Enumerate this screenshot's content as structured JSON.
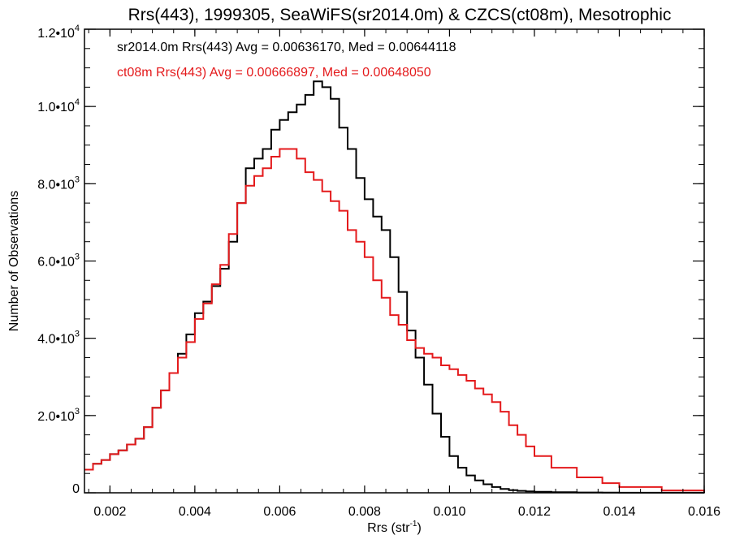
{
  "chart_data": {
    "type": "line",
    "step": true,
    "title": "Rrs(443), 1999305, SeaWiFS(sr2014.0m) & CZCS(ct08m), Mesotrophic",
    "xlabel": {
      "main": "Rrs (str",
      "sup": "-1",
      "tail": ")"
    },
    "ylabel": "Number of Observations",
    "xlim": [
      0.0014,
      0.016
    ],
    "ylim": [
      0,
      12000
    ],
    "grid": false,
    "legend_position": "top-left",
    "x_ticks": [
      0.002,
      0.004,
      0.006,
      0.008,
      0.01,
      0.012,
      0.014,
      0.016
    ],
    "x_tick_labels": [
      "0.002",
      "0.004",
      "0.006",
      "0.008",
      "0.010",
      "0.012",
      "0.014",
      "0.016"
    ],
    "y_ticks": [
      0,
      2000,
      4000,
      6000,
      8000,
      10000,
      12000
    ],
    "y_tick_labels": [
      {
        "base": "0",
        "sup": ""
      },
      {
        "base": "2.0•10",
        "sup": "3"
      },
      {
        "base": "4.0•10",
        "sup": "3"
      },
      {
        "base": "6.0•10",
        "sup": "3"
      },
      {
        "base": "8.0•10",
        "sup": "3"
      },
      {
        "base": "1.0•10",
        "sup": "4"
      },
      {
        "base": "1.2•10",
        "sup": "4"
      }
    ],
    "series": [
      {
        "name": "sr2014.0m",
        "label": "sr2014.0m Rrs(443) Avg = 0.00636170, Med = 0.00644118",
        "color": "#000000",
        "x": [
          0.0014,
          0.0016,
          0.0018,
          0.002,
          0.0022,
          0.0024,
          0.0026,
          0.0028,
          0.003,
          0.0032,
          0.0034,
          0.0036,
          0.0038,
          0.004,
          0.0042,
          0.0044,
          0.0046,
          0.0048,
          0.005,
          0.0052,
          0.0054,
          0.0056,
          0.0058,
          0.006,
          0.0062,
          0.0064,
          0.0066,
          0.0068,
          0.007,
          0.0072,
          0.0074,
          0.0076,
          0.0078,
          0.008,
          0.0082,
          0.0084,
          0.0086,
          0.0088,
          0.009,
          0.0092,
          0.0094,
          0.0096,
          0.0098,
          0.01,
          0.0102,
          0.0104,
          0.0106,
          0.0108,
          0.011,
          0.0112,
          0.0114,
          0.0116,
          0.0118,
          0.012,
          0.0124,
          0.013,
          0.0136,
          0.014,
          0.015,
          0.016
        ],
        "y": [
          600,
          750,
          850,
          1000,
          1100,
          1250,
          1400,
          1700,
          2200,
          2650,
          3100,
          3600,
          4100,
          4650,
          4950,
          5350,
          5800,
          6500,
          7500,
          8400,
          8650,
          8900,
          9400,
          9650,
          9850,
          10050,
          10300,
          10650,
          10500,
          10200,
          9450,
          8900,
          8150,
          7600,
          7150,
          6800,
          6100,
          5200,
          4200,
          3500,
          2800,
          2050,
          1450,
          950,
          650,
          450,
          320,
          220,
          150,
          100,
          70,
          50,
          35,
          25,
          15,
          8,
          5,
          3,
          2,
          1
        ]
      },
      {
        "name": "ct08m",
        "label": "ct08m Rrs(443) Avg = 0.00666897, Med = 0.00648050",
        "color": "#e41a1c",
        "x": [
          0.0014,
          0.0016,
          0.0018,
          0.002,
          0.0022,
          0.0024,
          0.0026,
          0.0028,
          0.003,
          0.0032,
          0.0034,
          0.0036,
          0.0038,
          0.004,
          0.0042,
          0.0044,
          0.0046,
          0.0048,
          0.005,
          0.0052,
          0.0054,
          0.0056,
          0.0058,
          0.006,
          0.0062,
          0.0064,
          0.0066,
          0.0068,
          0.007,
          0.0072,
          0.0074,
          0.0076,
          0.0078,
          0.008,
          0.0082,
          0.0084,
          0.0086,
          0.0088,
          0.009,
          0.0092,
          0.0094,
          0.0096,
          0.0098,
          0.01,
          0.0102,
          0.0104,
          0.0106,
          0.0108,
          0.011,
          0.0112,
          0.0114,
          0.0116,
          0.0118,
          0.012,
          0.0124,
          0.013,
          0.0136,
          0.014,
          0.015,
          0.016
        ],
        "y": [
          600,
          750,
          850,
          1000,
          1100,
          1250,
          1400,
          1700,
          2200,
          2650,
          3100,
          3500,
          3900,
          4500,
          4900,
          5400,
          5900,
          6700,
          7500,
          7950,
          8200,
          8400,
          8700,
          8900,
          8900,
          8650,
          8300,
          8100,
          7800,
          7550,
          7300,
          6800,
          6500,
          6100,
          5500,
          5050,
          4600,
          4350,
          3950,
          3750,
          3600,
          3500,
          3300,
          3200,
          3050,
          2900,
          2700,
          2550,
          2350,
          2100,
          1750,
          1500,
          1200,
          950,
          650,
          400,
          250,
          150,
          60,
          20
        ]
      }
    ]
  }
}
